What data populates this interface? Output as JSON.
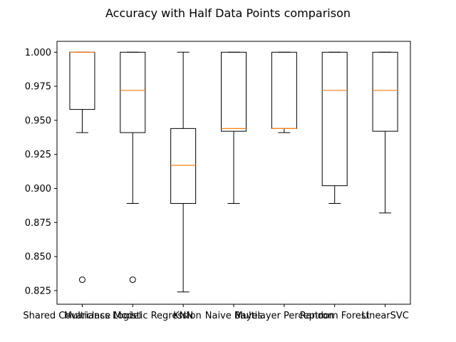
{
  "chart_data": {
    "type": "box",
    "title": "Accuracy with Half Data Points comparison",
    "xlabel": "",
    "ylabel": "",
    "ylim": [
      0.815,
      1.008
    ],
    "yticks": [
      0.825,
      0.85,
      0.875,
      0.9,
      0.925,
      0.95,
      0.975,
      1.0
    ],
    "ytick_labels": [
      "0.825",
      "0.850",
      "0.875",
      "0.900",
      "0.925",
      "0.950",
      "0.975",
      "1.000"
    ],
    "grid": false,
    "colors": {
      "box": "#000000",
      "median": "#ff7f0e"
    },
    "categories": [
      "Shared Covariance Model",
      "Multiclass Logistic Regression",
      "KNN",
      "Naive Bayes",
      "Multilayer Perceptron",
      "Random Forest",
      "LinearSVC"
    ],
    "series": [
      {
        "whisker_low": 0.941,
        "q1": 0.958,
        "median": 1.0,
        "q3": 1.0,
        "whisker_high": 1.0,
        "outliers": [
          0.833
        ]
      },
      {
        "whisker_low": 0.889,
        "q1": 0.941,
        "median": 0.972,
        "q3": 1.0,
        "whisker_high": 1.0,
        "outliers": [
          0.833
        ]
      },
      {
        "whisker_low": 0.824,
        "q1": 0.889,
        "median": 0.917,
        "q3": 0.944,
        "whisker_high": 1.0,
        "outliers": []
      },
      {
        "whisker_low": 0.889,
        "q1": 0.942,
        "median": 0.944,
        "q3": 1.0,
        "whisker_high": 1.0,
        "outliers": []
      },
      {
        "whisker_low": 0.941,
        "q1": 0.944,
        "median": 0.944,
        "q3": 1.0,
        "whisker_high": 1.0,
        "outliers": []
      },
      {
        "whisker_low": 0.889,
        "q1": 0.902,
        "median": 0.972,
        "q3": 1.0,
        "whisker_high": 1.0,
        "outliers": []
      },
      {
        "whisker_low": 0.882,
        "q1": 0.942,
        "median": 0.972,
        "q3": 1.0,
        "whisker_high": 1.0,
        "outliers": []
      }
    ]
  }
}
